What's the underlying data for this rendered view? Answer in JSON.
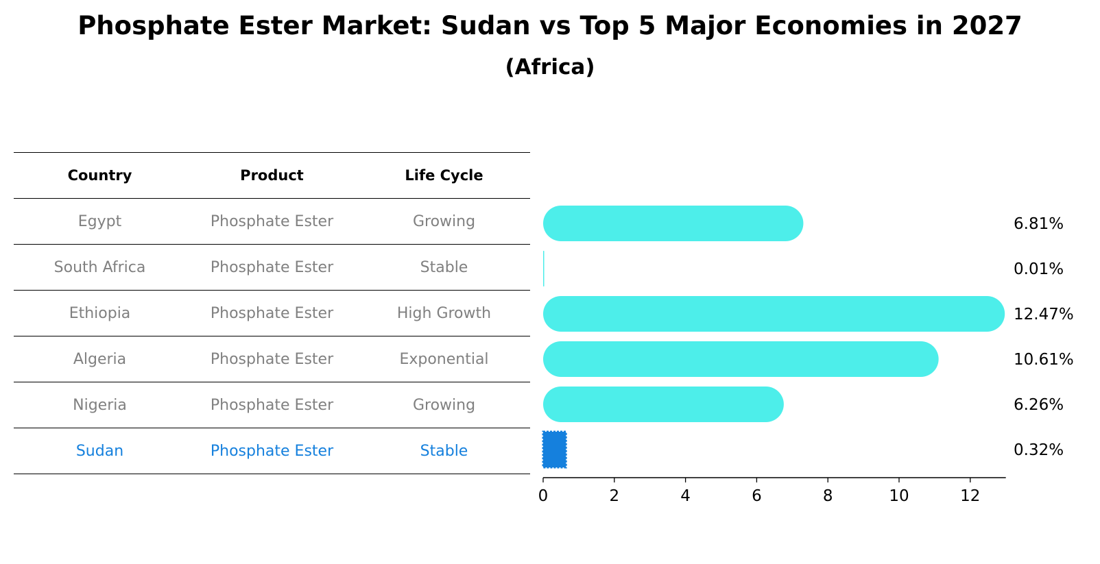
{
  "title": "Phosphate Ester Market: Sudan vs Top 5 Major Economies in 2027",
  "subtitle": "(Africa)",
  "table": {
    "headers": [
      "Country",
      "Product",
      "Life Cycle"
    ],
    "rows": [
      {
        "country": "Egypt",
        "product": "Phosphate Ester",
        "lifecycle": "Growing"
      },
      {
        "country": "South Africa",
        "product": "Phosphate Ester",
        "lifecycle": "Stable"
      },
      {
        "country": "Ethiopia",
        "product": "Phosphate Ester",
        "lifecycle": "High Growth"
      },
      {
        "country": "Algeria",
        "product": "Phosphate Ester",
        "lifecycle": "Exponential"
      },
      {
        "country": "Nigeria",
        "product": "Phosphate Ester",
        "lifecycle": "Growing"
      },
      {
        "country": "Sudan",
        "product": "Phosphate Ester",
        "lifecycle": "Stable"
      }
    ]
  },
  "chart_data": {
    "type": "bar",
    "orientation": "horizontal",
    "categories": [
      "Egypt",
      "South Africa",
      "Ethiopia",
      "Algeria",
      "Nigeria",
      "Sudan"
    ],
    "values": [
      6.81,
      0.01,
      12.47,
      10.61,
      6.26,
      0.32
    ],
    "labels": [
      "6.81%",
      "0.01%",
      "12.47%",
      "10.61%",
      "6.26%",
      "0.32%"
    ],
    "highlight": "Sudan",
    "xlim": [
      0,
      13
    ],
    "xticks": [
      0,
      2,
      4,
      6,
      8,
      10,
      12
    ],
    "colors": {
      "default": "#4deeea",
      "highlight": "#1580dd"
    }
  }
}
